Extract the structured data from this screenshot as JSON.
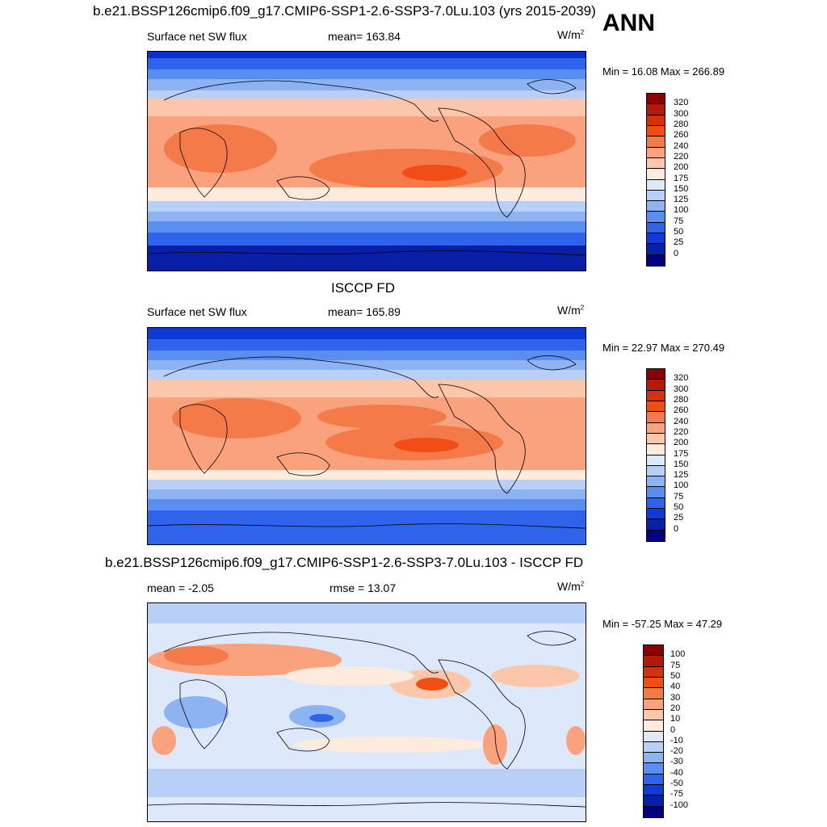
{
  "header": {
    "season": "ANN"
  },
  "panels": [
    {
      "title": "b.e21.BSSP126cmip6.f09_g17.CMIP6-SSP1-2.6-SSP3-7.0Lu.103 (yrs 2015-2039)",
      "left_label": "Surface net SW flux",
      "center_label": "mean= 163.84",
      "units_base": "W/m",
      "units_sup": "2",
      "minmax": "Min =  16.08 Max = 266.89",
      "colorbar_labels": [
        "320",
        "300",
        "280",
        "260",
        "240",
        "220",
        "200",
        "175",
        "150",
        "125",
        "100",
        "75",
        "50",
        "25",
        "0"
      ]
    },
    {
      "title": "ISCCP FD",
      "left_label": "Surface net SW flux",
      "center_label": "mean= 165.89",
      "units_base": "W/m",
      "units_sup": "2",
      "minmax": "Min =  22.97 Max = 270.49",
      "colorbar_labels": [
        "320",
        "300",
        "280",
        "260",
        "240",
        "220",
        "200",
        "175",
        "150",
        "125",
        "100",
        "75",
        "50",
        "25",
        "0"
      ]
    },
    {
      "title": "b.e21.BSSP126cmip6.f09_g17.CMIP6-SSP1-2.6-SSP3-7.0Lu.103 - ISCCP FD",
      "left_label": "mean =  -2.05",
      "center_label": "rmse =  13.07",
      "units_base": "W/m",
      "units_sup": "2",
      "minmax": "Min = -57.25 Max =  47.29",
      "colorbar_labels": [
        "100",
        "75",
        "50",
        "40",
        "30",
        "20",
        "10",
        "0",
        "-10",
        "-20",
        "-30",
        "-40",
        "-50",
        "-75",
        "-100"
      ]
    }
  ],
  "colorbar_colors": [
    "#8b0000",
    "#b21a05",
    "#d4300a",
    "#f04e14",
    "#f57a4a",
    "#f9a27d",
    "#fbc7ab",
    "#fdecde",
    "#dde9fb",
    "#b8cff7",
    "#8db3f2",
    "#5a8df0",
    "#2e63ec",
    "#0f3ad8",
    "#0820a8",
    "#000080"
  ]
}
